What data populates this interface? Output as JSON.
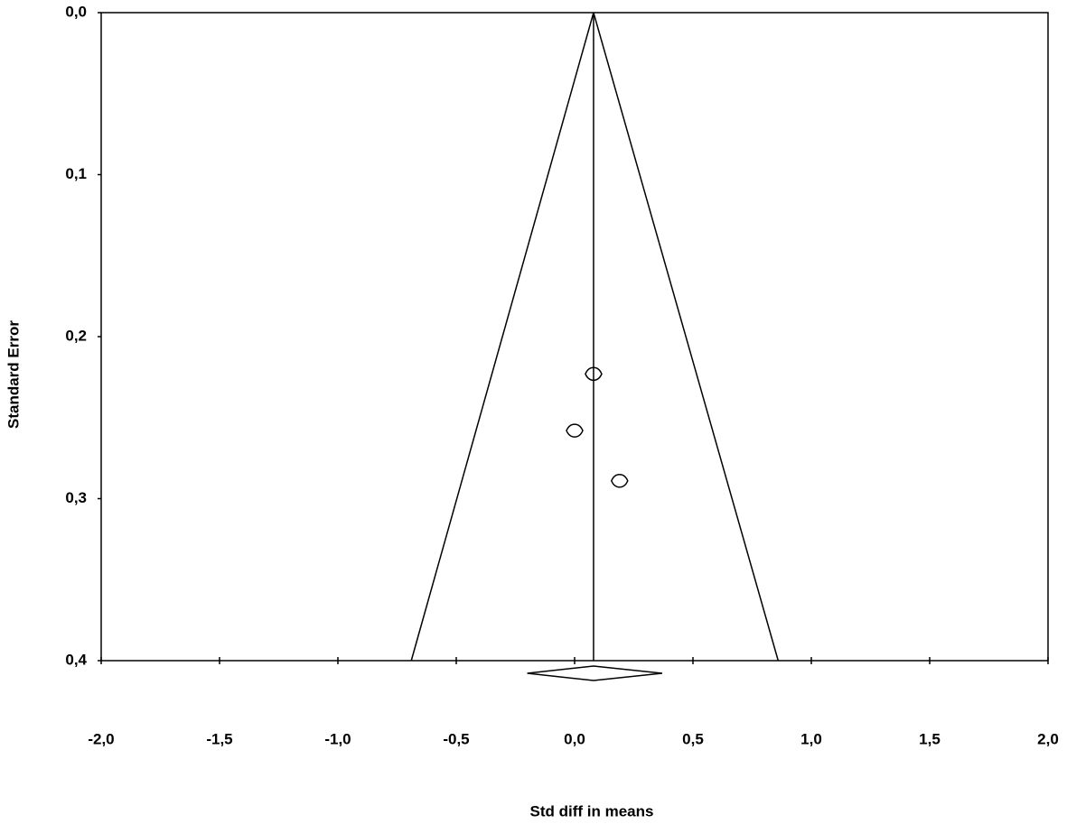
{
  "chart_data": {
    "type": "scatter",
    "xlabel": "Std diff in means",
    "ylabel": "Standard Error",
    "x": [
      0.08,
      0.0,
      0.19
    ],
    "y": [
      0.223,
      0.258,
      0.289
    ],
    "summary": {
      "value": 0.08,
      "ci_low": -0.2,
      "ci_high": 0.37
    },
    "funnel_bounds": [
      -0.69,
      0.86
    ],
    "xlim": [
      -2.0,
      2.0
    ],
    "ylim": [
      0.4,
      0.0
    ],
    "xticks": [
      {
        "value": -2.0,
        "label": "-2,0"
      },
      {
        "value": -1.5,
        "label": "-1,5"
      },
      {
        "value": -1.0,
        "label": "-1,0"
      },
      {
        "value": -0.5,
        "label": "-0,5"
      },
      {
        "value": 0.0,
        "label": "0,0"
      },
      {
        "value": 0.5,
        "label": "0,5"
      },
      {
        "value": 1.0,
        "label": "1,0"
      },
      {
        "value": 1.5,
        "label": "1,5"
      },
      {
        "value": 2.0,
        "label": "2,0"
      }
    ],
    "yticks": [
      {
        "value": 0.0,
        "label": "0,0"
      },
      {
        "value": 0.1,
        "label": "0,1"
      },
      {
        "value": 0.2,
        "label": "0,2"
      },
      {
        "value": 0.3,
        "label": "0,3"
      },
      {
        "value": 0.4,
        "label": "0,4"
      }
    ]
  }
}
